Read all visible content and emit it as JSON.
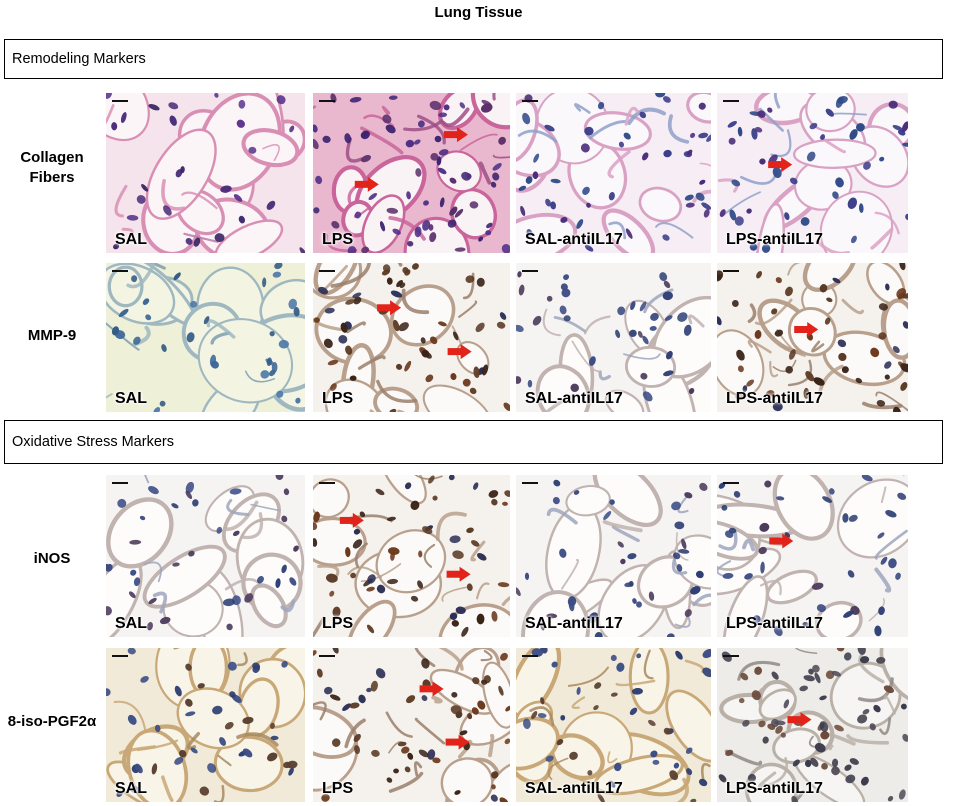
{
  "figure": {
    "title": "Lung Tissue",
    "colors": {
      "arrow": "#e2231a",
      "he_stain_bg": "#f4dfe8",
      "he_nuclei": "#4a2a78",
      "ihc_bg_light": "#f1f2e0",
      "ihc_nuclei": "#2b3f6e",
      "ihc_brown": "#6b3a1e"
    }
  },
  "sections": [
    {
      "label": "Remodeling Markers",
      "rows": [
        {
          "label_lines": [
            "Collagen",
            "Fibers"
          ],
          "stain": "he",
          "panels": [
            {
              "label": "SAL",
              "arrows": 0
            },
            {
              "label": "LPS",
              "arrows": 2
            },
            {
              "label": "SAL-antiIL17",
              "arrows": 0
            },
            {
              "label": "LPS-antiIL17",
              "arrows": 1
            }
          ]
        },
        {
          "label_lines": [
            "MMP-9"
          ],
          "stain": "ihc",
          "panels": [
            {
              "label": "SAL",
              "arrows": 0
            },
            {
              "label": "LPS",
              "arrows": 2
            },
            {
              "label": "SAL-antiIL17",
              "arrows": 0
            },
            {
              "label": "LPS-antiIL17",
              "arrows": 1
            }
          ]
        }
      ]
    },
    {
      "label": "Oxidative Stress Markers",
      "rows": [
        {
          "label_lines": [
            "iNOS"
          ],
          "stain": "ihc",
          "panels": [
            {
              "label": "SAL",
              "arrows": 0
            },
            {
              "label": "LPS",
              "arrows": 2
            },
            {
              "label": "SAL-antiIL17",
              "arrows": 0
            },
            {
              "label": "LPS-antiIL17",
              "arrows": 1
            }
          ]
        },
        {
          "label_lines": [
            "8-iso-PGF2α"
          ],
          "stain": "ihc",
          "panels": [
            {
              "label": "SAL",
              "arrows": 0
            },
            {
              "label": "LPS",
              "arrows": 2
            },
            {
              "label": "SAL-antiIL17",
              "arrows": 0
            },
            {
              "label": "LPS-antiIL17",
              "arrows": 1
            }
          ]
        }
      ]
    }
  ]
}
